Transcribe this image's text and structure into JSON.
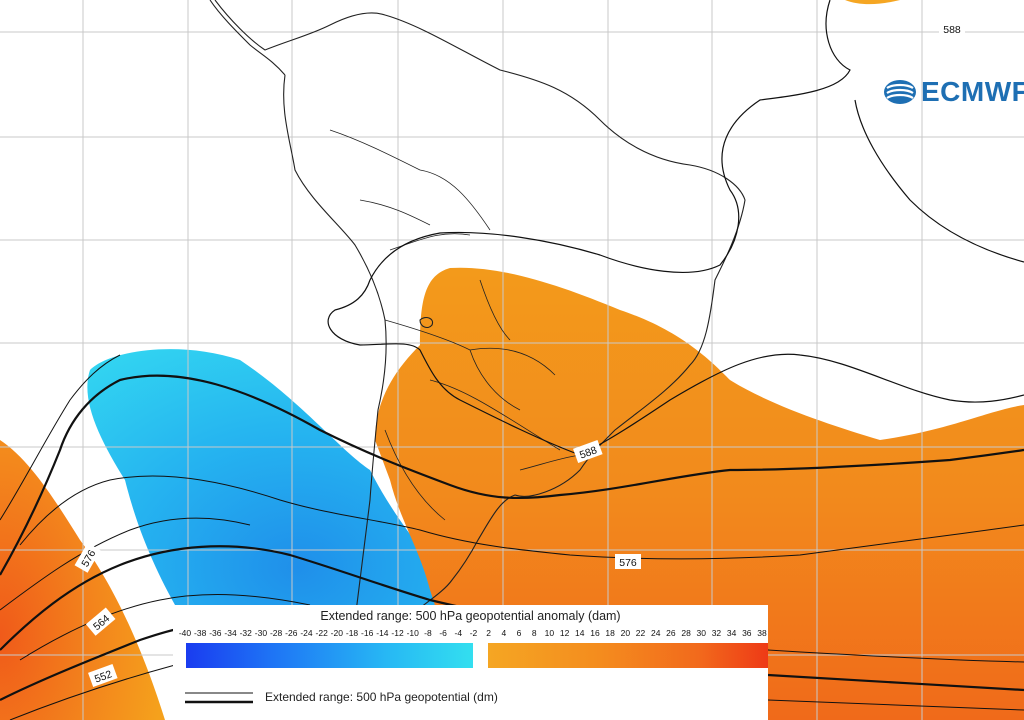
{
  "logo": {
    "text": "ECMWF",
    "color": "#1e6fb3"
  },
  "legend": {
    "title": "Extended range: 500 hPa geopotential anomaly (dam)",
    "ticks": [
      "-40",
      "-38",
      "-36",
      "-34",
      "-32",
      "-30",
      "-28",
      "-26",
      "-24",
      "-22",
      "-20",
      "-18",
      "-16",
      "-14",
      "-12",
      "-10",
      "-8",
      "-6",
      "-4",
      "-2",
      "2",
      "4",
      "6",
      "8",
      "10",
      "12",
      "14",
      "16",
      "18",
      "20",
      "22",
      "24",
      "26",
      "28",
      "30",
      "32",
      "34",
      "36",
      "38"
    ],
    "contour_label": "Extended range: 500 hPa geopotential (dm)"
  },
  "contour_labels": {
    "north_588": "588",
    "center_588": "588",
    "east_576": "576",
    "west_576": "576",
    "west_564": "564",
    "west_552": "552"
  },
  "colors": {
    "negative_anomaly": "#29c4ef",
    "positive_anomaly": "#f39a1b",
    "strong_positive": "#f16a1b",
    "contour": "#111111",
    "coastline": "#222222",
    "grid": "#c9c9c9"
  }
}
